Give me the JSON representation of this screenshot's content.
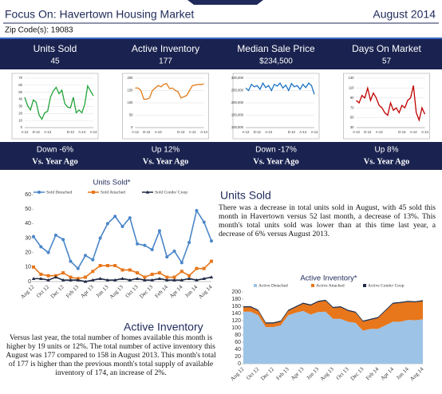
{
  "header": {
    "title": "Focus On: Havertown Housing Market",
    "date": "August 2014",
    "zip": "Zip Code(s): 19083"
  },
  "metrics": [
    {
      "title": "Units Sold",
      "value": "45",
      "change": "Down -6%",
      "compare": "Vs. Year Ago"
    },
    {
      "title": "Active Inventory",
      "value": "177",
      "change": "Up 12%",
      "compare": "Vs. Year Ago"
    },
    {
      "title": "Median Sale Price",
      "value": "$234,500",
      "change": "Down -17%",
      "compare": "Vs. Year Ago"
    },
    {
      "title": "Days On Market",
      "value": "57",
      "change": "Up 8%",
      "compare": "Vs. Year Ago"
    }
  ],
  "chart_data": [
    {
      "type": "line",
      "categories": [
        "A-12",
        null,
        null,
        null,
        "D-12",
        null,
        null,
        null,
        "A-13",
        null,
        null,
        null,
        null,
        null,
        null,
        null,
        "D-13",
        null,
        null,
        null,
        "A-14",
        null,
        null,
        null,
        "A-14"
      ],
      "values": [
        43,
        31,
        25,
        39,
        36,
        18,
        12,
        21,
        23,
        43,
        52,
        57,
        48,
        53,
        34,
        29,
        28,
        43,
        21,
        25,
        21,
        33,
        59,
        52,
        45
      ],
      "color": "#22a33a",
      "ylim": [
        0,
        70
      ],
      "yticks": [
        0,
        10,
        20,
        30,
        40,
        50,
        60,
        70
      ],
      "grid": true
    },
    {
      "type": "line",
      "categories": [
        "A-12",
        null,
        null,
        null,
        "D-12",
        null,
        null,
        null,
        "A-13",
        null,
        null,
        null,
        null,
        null,
        null,
        null,
        "D-13",
        null,
        null,
        null,
        "A-14",
        null,
        null,
        null,
        "A-14"
      ],
      "values": [
        160,
        160,
        150,
        115,
        115,
        120,
        150,
        160,
        170,
        165,
        175,
        178,
        158,
        160,
        150,
        145,
        120,
        125,
        130,
        150,
        170,
        172,
        175,
        174,
        177
      ],
      "color": "#e07b1a",
      "ylim": [
        0,
        200
      ],
      "yticks": [
        0,
        50,
        100,
        150,
        200
      ],
      "grid": true
    },
    {
      "type": "line",
      "categories": [
        "A-12",
        null,
        null,
        null,
        "D-12",
        null,
        null,
        null,
        "A-13",
        null,
        null,
        null,
        null,
        null,
        null,
        null,
        "D-13",
        null,
        null,
        null,
        "A-14",
        null,
        null,
        null,
        "A-14"
      ],
      "values": [
        260000,
        250000,
        275000,
        265000,
        270000,
        255000,
        280000,
        262000,
        270000,
        250000,
        275000,
        268000,
        280000,
        260000,
        272000,
        250000,
        278000,
        265000,
        270000,
        255000,
        275000,
        262000,
        280000,
        270000,
        234500
      ],
      "color": "#1a73c4",
      "ylim": [
        100000,
        300000
      ],
      "yticks": [
        {
          "value": 100000,
          "label": "100,000"
        },
        {
          "value": 150000,
          "label": "150,000"
        },
        {
          "value": 200000,
          "label": "200,000"
        },
        {
          "value": 250000,
          "label": "250,000"
        },
        {
          "value": 300000,
          "label": "300,000"
        }
      ],
      "grid": true
    },
    {
      "type": "line",
      "categories": [
        "A-12",
        null,
        null,
        null,
        "D-12",
        null,
        null,
        null,
        "A-13",
        null,
        null,
        null,
        null,
        null,
        null,
        null,
        "D-13",
        null,
        null,
        null,
        "A-14",
        null,
        null,
        null,
        "A-14"
      ],
      "values": [
        85,
        80,
        95,
        90,
        110,
        85,
        100,
        90,
        75,
        70,
        60,
        55,
        80,
        65,
        70,
        60,
        75,
        70,
        85,
        90,
        115,
        60,
        45,
        70,
        57
      ],
      "color": "#c00000",
      "ylim": [
        30,
        130
      ],
      "yticks": [
        30,
        50,
        70,
        90,
        110,
        130
      ],
      "grid": true
    },
    {
      "type": "line",
      "title": "Units Sold*",
      "categories": [
        "Aug 12",
        null,
        "Oct 12",
        null,
        "Dec 12",
        null,
        "Feb 13",
        null,
        "Apr 13",
        null,
        "Jun 13",
        null,
        "Aug 13",
        null,
        "Oct 13",
        null,
        "Dec 13",
        null,
        "Feb 14",
        null,
        "Apr 14",
        null,
        "Jun 14",
        null,
        "Aug 14"
      ],
      "series": [
        {
          "name": "Sold Detached",
          "color": "#4a86c8",
          "marker": "circle",
          "values": [
            31,
            24,
            20,
            32,
            29,
            14,
            9,
            18,
            15,
            30,
            40,
            45,
            38,
            44,
            26,
            25,
            22,
            35,
            17,
            21,
            13,
            27,
            49,
            41,
            28
          ]
        },
        {
          "name": "Sold Attached",
          "color": "#e8761b",
          "marker": "square",
          "values": [
            10,
            5,
            4,
            4,
            6,
            3,
            2,
            3,
            7,
            11,
            11,
            11,
            8,
            8,
            6,
            3,
            5,
            6,
            3,
            3,
            7,
            4,
            9,
            9,
            14
          ]
        },
        {
          "name": "Sold Condo/ Coop",
          "color": "#1f2a44",
          "marker": "triangle",
          "values": [
            2,
            2,
            1,
            3,
            1,
            1,
            1,
            0,
            1,
            2,
            1,
            1,
            2,
            1,
            2,
            1,
            1,
            2,
            1,
            1,
            1,
            2,
            1,
            2,
            3
          ]
        }
      ],
      "ylim": [
        0,
        60
      ],
      "yticks": [
        0,
        10,
        20,
        30,
        40,
        50,
        60
      ],
      "grid": false
    },
    {
      "type": "area",
      "title": "Active Inventory*",
      "categories": [
        "Aug 12",
        null,
        "Oct 12",
        null,
        "Dec 12",
        null,
        "Feb 13",
        null,
        "Apr 13",
        null,
        "Jun 13",
        null,
        "Aug 13",
        null,
        "Oct 13",
        null,
        "Dec 13",
        null,
        "Feb 14",
        null,
        "Apr 14",
        null,
        "Jun 14",
        null,
        "Aug 14"
      ],
      "series": [
        {
          "name": "Active Detached",
          "color": "#9dc3e6",
          "values": [
            145,
            145,
            135,
            102,
            102,
            107,
            135,
            142,
            147,
            137,
            144,
            145,
            125,
            125,
            117,
            114,
            92,
            97,
            97,
            107,
            117,
            117,
            122,
            121,
            124
          ]
        },
        {
          "name": "Active Attached",
          "color": "#e8761b",
          "values": [
            12,
            12,
            12,
            10,
            10,
            10,
            12,
            15,
            20,
            25,
            28,
            30,
            30,
            32,
            30,
            28,
            25,
            25,
            30,
            40,
            50,
            52,
            50,
            50,
            50
          ]
        },
        {
          "name": "Active Condo/ Coop",
          "color": "#1f2a44",
          "values": [
            3,
            3,
            3,
            3,
            3,
            3,
            3,
            3,
            3,
            3,
            3,
            3,
            3,
            3,
            3,
            3,
            3,
            3,
            3,
            3,
            3,
            3,
            3,
            3,
            3
          ]
        }
      ],
      "ylim": [
        0,
        200
      ],
      "yticks": [
        0,
        20,
        40,
        60,
        80,
        100,
        120,
        140,
        160,
        180,
        200
      ],
      "grid": false
    }
  ],
  "sections": [
    {
      "heading": "Units Sold",
      "text": "There was a decrease in total units sold in August, with 45 sold this month in Havertown versus 52 last month, a decrease of 13%. This month's total units sold was lower than at this time last year, a decrease of 6% versus August 2013."
    },
    {
      "heading": "Active Inventory",
      "text": "Versus last year, the total number of homes available this month is higher by 19 units or 12%. The total number of active inventory this August was 177 compared to 158 in August 2013. This month's total of 177 is higher than the previous month's total supply of available inventory of 174, an increase of 2%."
    }
  ]
}
